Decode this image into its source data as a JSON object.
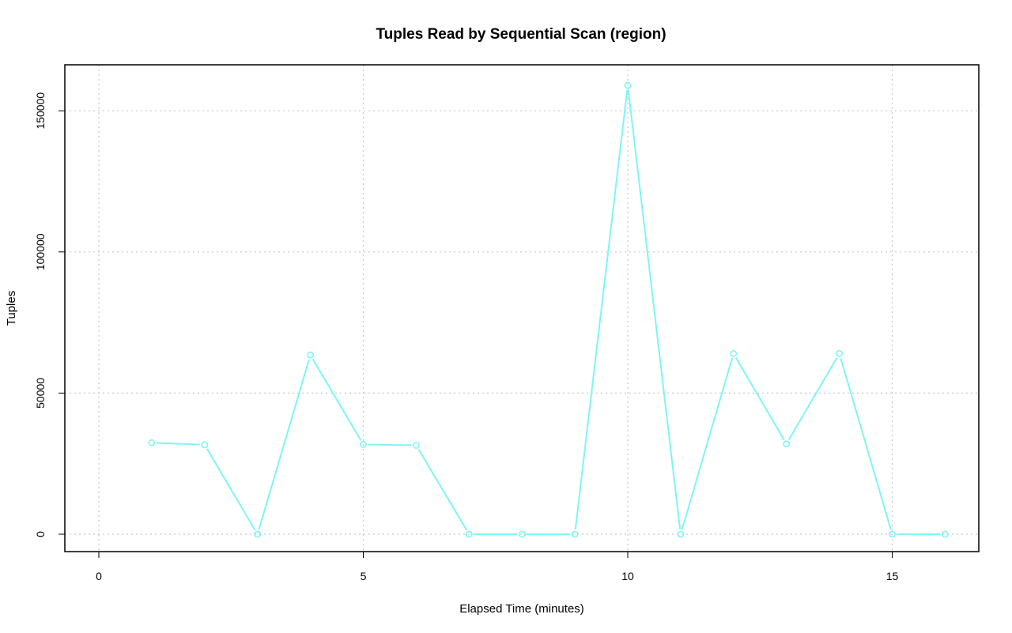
{
  "chart_data": {
    "type": "line",
    "title": "Tuples Read by Sequential Scan (region)",
    "xlabel": "Elapsed Time (minutes)",
    "ylabel": "Tuples",
    "xlim": [
      0,
      16
    ],
    "ylim": [
      0,
      160000
    ],
    "x_ticks": [
      0,
      5,
      10,
      15
    ],
    "y_ticks": [
      0,
      50000,
      100000,
      150000
    ],
    "grid": true,
    "series": [
      {
        "color": "#7ff5f5",
        "marker": "open-circle",
        "x": [
          1,
          2,
          3,
          4,
          5,
          6,
          7,
          8,
          9,
          10,
          11,
          12,
          13,
          14,
          15,
          16
        ],
        "y": [
          32400,
          31700,
          0,
          63500,
          31800,
          31500,
          0,
          0,
          0,
          159000,
          0,
          64000,
          32000,
          64000,
          0,
          0
        ]
      }
    ]
  }
}
